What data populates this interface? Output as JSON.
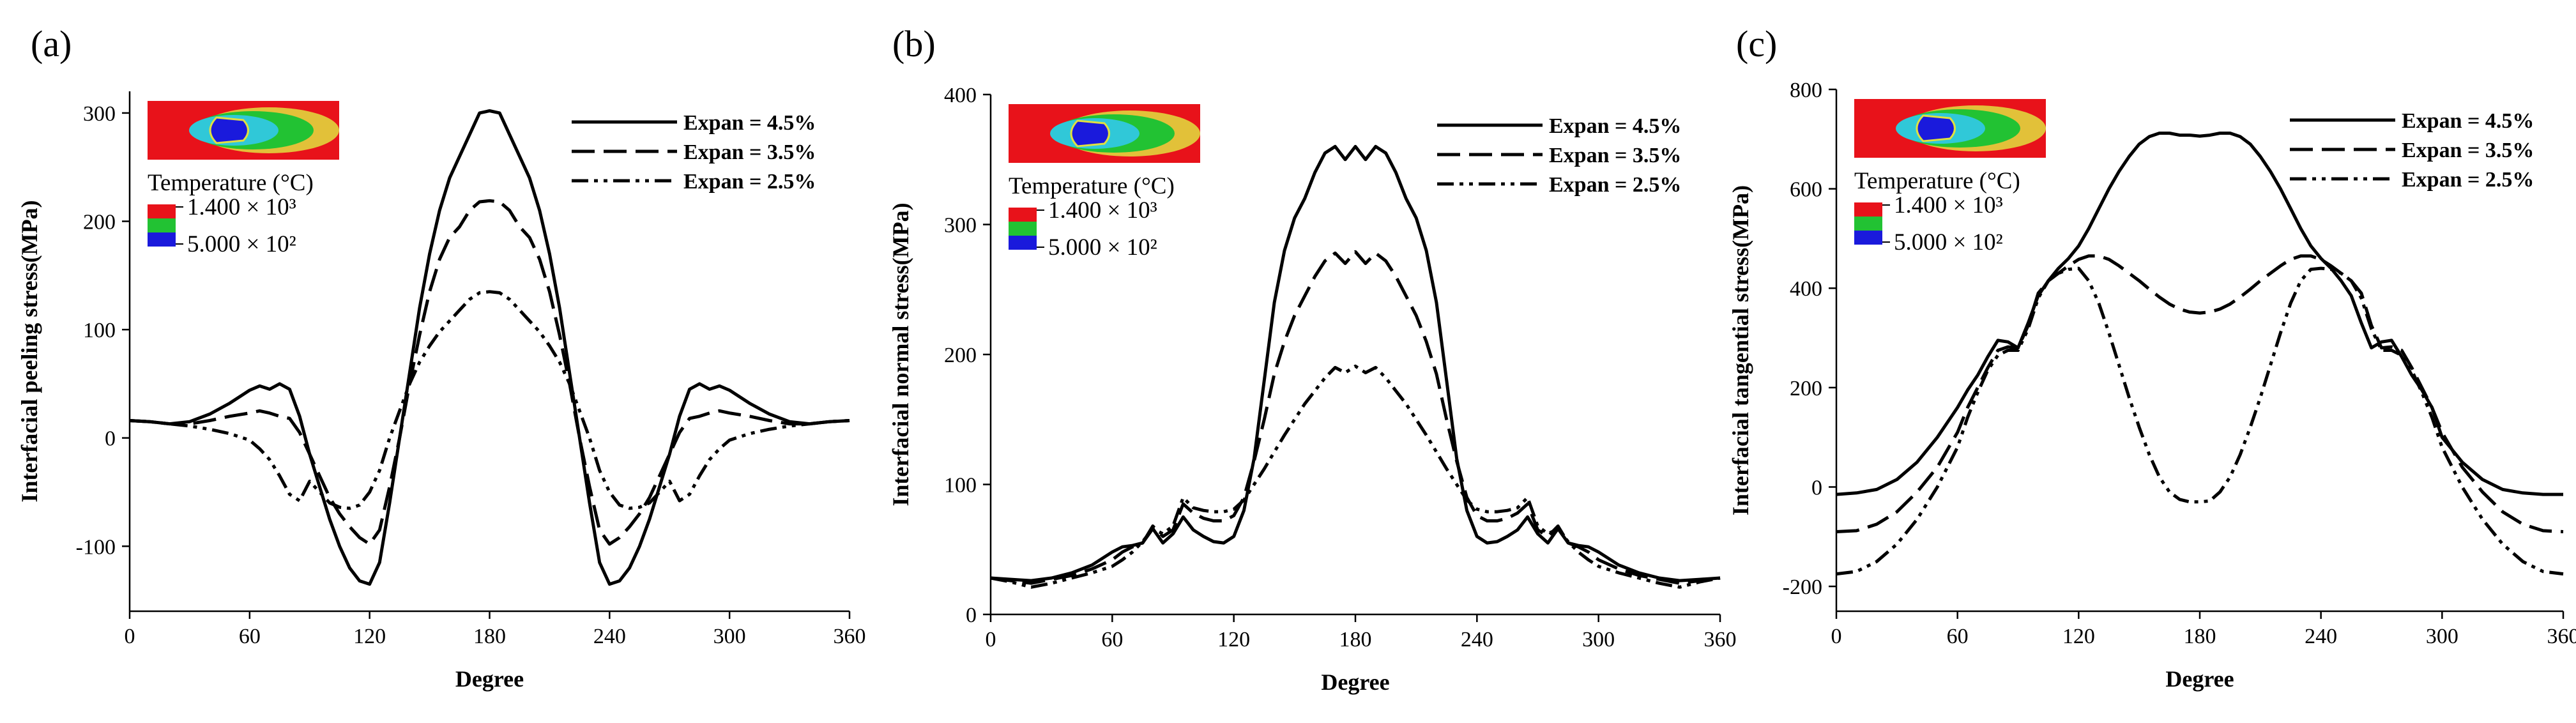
{
  "chart_data": [
    {
      "type": "line",
      "panel_label": "(a)",
      "xlabel": "Degree",
      "ylabel": "Interfacial peeling stress(MPa)",
      "xlim": [
        0,
        360
      ],
      "ylim": [
        -160,
        320
      ],
      "xticks": [
        0,
        60,
        120,
        180,
        240,
        300,
        360
      ],
      "yticks": [
        -100,
        0,
        100,
        200,
        300
      ],
      "x": [
        0,
        10,
        20,
        30,
        40,
        50,
        60,
        65,
        70,
        75,
        80,
        85,
        90,
        95,
        100,
        105,
        110,
        115,
        120,
        125,
        130,
        135,
        140,
        145,
        150,
        155,
        160,
        165,
        170,
        175,
        180,
        185,
        190,
        195,
        200,
        205,
        210,
        215,
        220,
        225,
        230,
        235,
        240,
        245,
        250,
        255,
        260,
        265,
        270,
        275,
        280,
        285,
        290,
        295,
        300,
        310,
        320,
        330,
        340,
        350,
        360
      ],
      "series": [
        {
          "name": "Expan = 4.5%",
          "dash": "solid",
          "values": [
            16,
            15,
            13,
            15,
            22,
            32,
            44,
            48,
            45,
            50,
            45,
            20,
            -15,
            -45,
            -75,
            -100,
            -120,
            -132,
            -135,
            -115,
            -60,
            0,
            60,
            120,
            170,
            210,
            240,
            260,
            280,
            300,
            302,
            300,
            280,
            260,
            240,
            210,
            170,
            120,
            60,
            0,
            -60,
            -115,
            -135,
            -132,
            -120,
            -100,
            -75,
            -45,
            -15,
            20,
            45,
            50,
            45,
            48,
            44,
            32,
            22,
            15,
            13,
            15,
            16
          ]
        },
        {
          "name": "Expan = 3.5%",
          "dash": "dash",
          "values": [
            16,
            15,
            13,
            13,
            16,
            20,
            23,
            25,
            23,
            20,
            18,
            5,
            -15,
            -35,
            -55,
            -70,
            -82,
            -92,
            -98,
            -85,
            -45,
            0,
            50,
            95,
            135,
            165,
            185,
            195,
            210,
            218,
            219,
            218,
            210,
            195,
            185,
            165,
            135,
            95,
            50,
            0,
            -45,
            -85,
            -98,
            -92,
            -82,
            -70,
            -55,
            -35,
            -15,
            5,
            18,
            20,
            23,
            25,
            23,
            20,
            16,
            13,
            13,
            15,
            16
          ]
        },
        {
          "name": "Expan = 2.5%",
          "dash": "dashdotdot",
          "values": [
            16,
            15,
            13,
            11,
            8,
            4,
            -2,
            -10,
            -20,
            -35,
            -52,
            -58,
            -40,
            -50,
            -60,
            -64,
            -65,
            -62,
            -50,
            -30,
            0,
            25,
            50,
            70,
            85,
            98,
            108,
            118,
            128,
            134,
            135,
            134,
            128,
            118,
            108,
            98,
            85,
            70,
            50,
            25,
            0,
            -30,
            -50,
            -62,
            -65,
            -64,
            -60,
            -50,
            -40,
            -58,
            -52,
            -35,
            -20,
            -10,
            -2,
            4,
            8,
            11,
            13,
            15,
            16
          ]
        }
      ]
    },
    {
      "type": "line",
      "panel_label": "(b)",
      "xlabel": "Degree",
      "ylabel": "Interfacial normal stress(MPa)",
      "xlim": [
        0,
        360
      ],
      "ylim": [
        0,
        400
      ],
      "xticks": [
        0,
        60,
        120,
        180,
        240,
        300,
        360
      ],
      "yticks": [
        0,
        100,
        200,
        300,
        400
      ],
      "x": [
        0,
        10,
        20,
        30,
        40,
        50,
        60,
        65,
        70,
        75,
        80,
        85,
        90,
        95,
        100,
        105,
        110,
        115,
        120,
        125,
        130,
        135,
        140,
        145,
        150,
        155,
        160,
        165,
        170,
        175,
        180,
        185,
        190,
        195,
        200,
        205,
        210,
        215,
        220,
        225,
        230,
        235,
        240,
        245,
        250,
        255,
        260,
        265,
        270,
        275,
        280,
        285,
        290,
        295,
        300,
        310,
        320,
        330,
        340,
        350,
        360
      ],
      "series": [
        {
          "name": "Expan = 4.5%",
          "dash": "solid",
          "values": [
            28,
            27,
            26,
            28,
            32,
            38,
            48,
            52,
            53,
            55,
            66,
            55,
            62,
            75,
            65,
            60,
            56,
            55,
            60,
            80,
            120,
            180,
            240,
            280,
            305,
            320,
            340,
            355,
            360,
            350,
            360,
            350,
            360,
            355,
            340,
            320,
            305,
            280,
            240,
            180,
            120,
            80,
            60,
            55,
            56,
            60,
            65,
            75,
            62,
            55,
            66,
            55,
            53,
            52,
            48,
            38,
            32,
            28,
            26,
            27,
            28
          ]
        },
        {
          "name": "Expan = 3.5%",
          "dash": "dash",
          "values": [
            28,
            26,
            24,
            27,
            30,
            35,
            42,
            48,
            52,
            55,
            68,
            60,
            65,
            85,
            78,
            74,
            72,
            72,
            76,
            90,
            118,
            150,
            185,
            210,
            230,
            245,
            260,
            272,
            278,
            270,
            279,
            270,
            278,
            272,
            260,
            245,
            230,
            210,
            185,
            150,
            118,
            90,
            76,
            72,
            72,
            74,
            78,
            85,
            65,
            60,
            68,
            55,
            52,
            48,
            42,
            35,
            30,
            27,
            24,
            26,
            28
          ]
        },
        {
          "name": "Expan = 2.5%",
          "dash": "dashdotdot",
          "values": [
            28,
            25,
            21,
            24,
            28,
            32,
            37,
            42,
            48,
            56,
            66,
            62,
            68,
            90,
            82,
            80,
            79,
            79,
            81,
            88,
            100,
            112,
            125,
            138,
            150,
            162,
            172,
            182,
            190,
            186,
            191,
            186,
            190,
            182,
            172,
            162,
            150,
            138,
            125,
            112,
            100,
            88,
            81,
            79,
            79,
            80,
            82,
            90,
            68,
            62,
            66,
            56,
            48,
            42,
            37,
            32,
            28,
            24,
            21,
            25,
            28
          ]
        }
      ]
    },
    {
      "type": "line",
      "panel_label": "(c)",
      "xlabel": "Degree",
      "ylabel": "Interfacial tangential stress(MPa)",
      "xlim": [
        0,
        360
      ],
      "ylim": [
        -250,
        800
      ],
      "xticks": [
        0,
        60,
        120,
        180,
        240,
        300,
        360
      ],
      "yticks": [
        -200,
        0,
        200,
        400,
        600,
        800
      ],
      "x": [
        0,
        10,
        20,
        30,
        40,
        50,
        60,
        65,
        70,
        75,
        80,
        85,
        90,
        95,
        100,
        105,
        110,
        115,
        120,
        125,
        130,
        135,
        140,
        145,
        150,
        155,
        160,
        165,
        170,
        175,
        180,
        185,
        190,
        195,
        200,
        205,
        210,
        215,
        220,
        225,
        230,
        235,
        240,
        245,
        250,
        255,
        260,
        265,
        270,
        275,
        280,
        285,
        290,
        295,
        300,
        310,
        320,
        330,
        340,
        350,
        360
      ],
      "series": [
        {
          "name": "Expan = 4.5%",
          "dash": "solid",
          "values": [
            -15,
            -12,
            -5,
            15,
            50,
            100,
            160,
            195,
            225,
            262,
            295,
            292,
            280,
            330,
            385,
            415,
            440,
            460,
            485,
            520,
            560,
            600,
            635,
            665,
            690,
            705,
            712,
            712,
            708,
            708,
            706,
            708,
            712,
            712,
            705,
            690,
            665,
            635,
            600,
            560,
            520,
            485,
            460,
            440,
            415,
            385,
            330,
            280,
            292,
            295,
            262,
            225,
            195,
            160,
            100,
            50,
            15,
            -5,
            -12,
            -15,
            -15
          ]
        },
        {
          "name": "Expan = 3.5%",
          "dash": "dash",
          "values": [
            -90,
            -88,
            -75,
            -50,
            -10,
            40,
            110,
            160,
            200,
            240,
            275,
            282,
            280,
            325,
            390,
            415,
            430,
            445,
            458,
            465,
            465,
            458,
            445,
            430,
            415,
            398,
            382,
            368,
            358,
            352,
            350,
            352,
            358,
            368,
            382,
            398,
            415,
            430,
            445,
            458,
            465,
            465,
            458,
            445,
            430,
            415,
            390,
            325,
            280,
            282,
            275,
            240,
            200,
            160,
            110,
            40,
            -10,
            -50,
            -75,
            -88,
            -90
          ]
        },
        {
          "name": "Expan = 2.5%",
          "dash": "dashdotdot",
          "values": [
            -175,
            -170,
            -150,
            -115,
            -65,
            0,
            80,
            140,
            190,
            235,
            265,
            275,
            275,
            318,
            380,
            415,
            430,
            438,
            440,
            415,
            370,
            310,
            245,
            180,
            120,
            65,
            20,
            -10,
            -25,
            -30,
            -30,
            -28,
            -10,
            20,
            65,
            120,
            180,
            245,
            310,
            370,
            415,
            438,
            440,
            438,
            430,
            415,
            380,
            318,
            275,
            275,
            265,
            235,
            190,
            140,
            80,
            0,
            -65,
            -115,
            -150,
            -170,
            -175
          ]
        }
      ]
    }
  ],
  "inset": {
    "title": "Temperature (°C)",
    "scale_max": "1.400 × 10³",
    "scale_min": "5.000 × 10²",
    "colors": {
      "red": "#e8121a",
      "green": "#22c233",
      "blue": "#1a1adc",
      "cyan": "#30c8d8",
      "yellow": "#e0e040"
    }
  }
}
